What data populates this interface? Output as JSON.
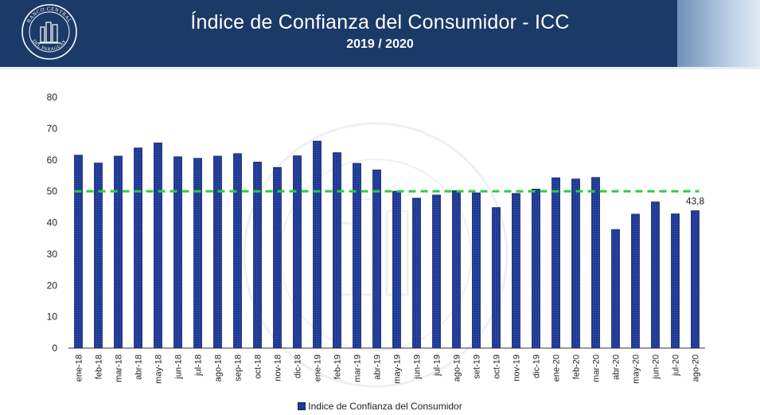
{
  "header": {
    "title": "Índice de Confianza del Consumidor - ICC",
    "subtitle": "2019 / 2020",
    "logo_text": "BANCO CENTRAL DEL PARAGUAY"
  },
  "colors": {
    "header_bg": "#1c3a68",
    "bar_fill": "#1f3a93",
    "bar_stroke": "#13246b",
    "reference_line": "#2ecc40"
  },
  "chart_data": {
    "type": "bar",
    "categories": [
      "ene-18",
      "feb-18",
      "mar-18",
      "abr-18",
      "may-18",
      "jun-18",
      "jul-18",
      "ago-18",
      "sep-18",
      "oct-18",
      "nov-18",
      "dic-18",
      "ene-19",
      "feb-19",
      "mar-19",
      "abr-19",
      "may-19",
      "jun-19",
      "jul-19",
      "ago-19",
      "set-19",
      "oct-19",
      "nov-19",
      "dic-19",
      "ene-20",
      "feb-20",
      "mar-20",
      "abr-20",
      "may-20",
      "jun-20",
      "jul-20",
      "ago-20"
    ],
    "series": [
      {
        "name": "Indice de Confianza del Consumidor",
        "values": [
          61.5,
          59.0,
          61.2,
          63.8,
          65.4,
          61.0,
          60.5,
          61.2,
          62.0,
          59.3,
          57.6,
          61.3,
          66.0,
          62.3,
          58.9,
          56.8,
          50.0,
          47.8,
          48.8,
          50.2,
          49.5,
          44.8,
          49.3,
          50.7,
          54.3,
          53.9,
          54.4,
          37.8,
          42.7,
          46.6,
          42.8,
          43.8
        ]
      }
    ],
    "reference_line": {
      "value": 50,
      "style": "dashed"
    },
    "data_labels": [
      {
        "index": 31,
        "text": "43,8"
      }
    ],
    "ylim": [
      0,
      80
    ],
    "yticks": [
      0,
      10,
      20,
      30,
      40,
      50,
      60,
      70,
      80
    ],
    "xlabel": "",
    "ylabel": "",
    "legend_position": "bottom",
    "grid": false
  }
}
